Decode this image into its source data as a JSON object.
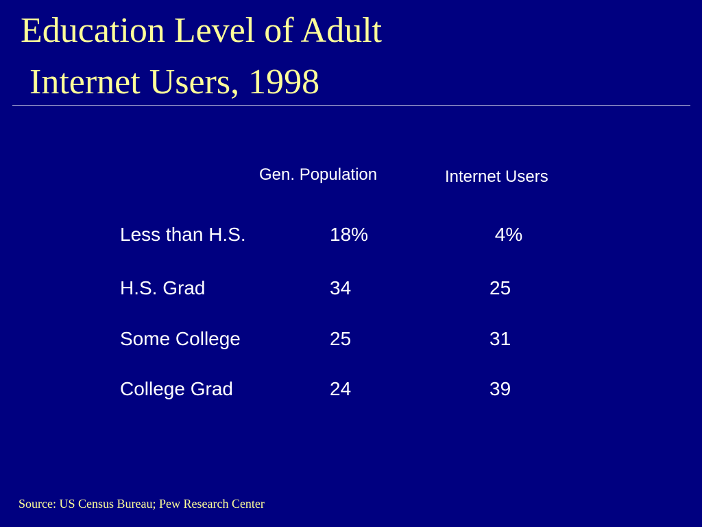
{
  "slide": {
    "title_line1": "Education Level of Adult",
    "title_line2": " Internet Users, 1998",
    "source": "Source: US Census Bureau; Pew Research Center"
  },
  "colors": {
    "background": "#000080",
    "title": "#ffff99",
    "text": "#ffffff"
  },
  "chart_data": {
    "type": "table",
    "title": "Education Level of Adult Internet Users, 1998",
    "columns": [
      "Gen. Population",
      "Internet Users"
    ],
    "rows": [
      {
        "label": "Less than H.S.",
        "values": [
          "18%",
          " 4%"
        ]
      },
      {
        "label": "H.S. Grad",
        "values": [
          "34",
          "25"
        ]
      },
      {
        "label": "Some College",
        "values": [
          "25",
          "31"
        ]
      },
      {
        "label": "College Grad",
        "values": [
          "24",
          "39"
        ]
      }
    ],
    "series": [
      {
        "name": "Gen. Population",
        "values": [
          18,
          34,
          25,
          24
        ]
      },
      {
        "name": "Internet Users",
        "values": [
          4,
          25,
          31,
          39
        ]
      }
    ],
    "categories": [
      "Less than H.S.",
      "H.S. Grad",
      "Some College",
      "College Grad"
    ],
    "unit": "%"
  }
}
